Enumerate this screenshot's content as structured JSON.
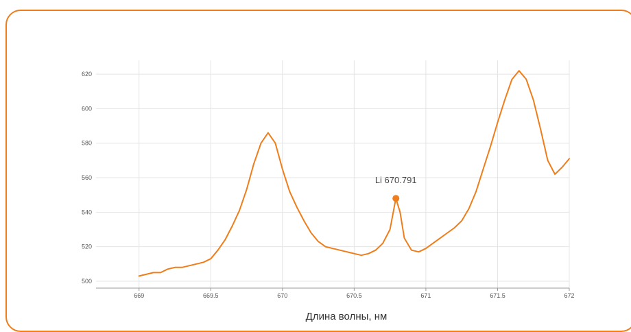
{
  "chart_data": {
    "type": "line",
    "title": "",
    "xlabel": "Длина волны, нм",
    "ylabel": "",
    "xlim": [
      668.7,
      672
    ],
    "ylim": [
      496,
      628
    ],
    "x_ticks": [
      669,
      669.5,
      670,
      670.5,
      671,
      671.5,
      672
    ],
    "x_tick_labels": [
      "669",
      "669.5",
      "670",
      "670.5",
      "671",
      "671.5",
      "672"
    ],
    "y_ticks": [
      500,
      520,
      540,
      560,
      580,
      600,
      620
    ],
    "y_tick_labels": [
      "500",
      "520",
      "540",
      "560",
      "580",
      "600",
      "620"
    ],
    "grid": true,
    "color": "#ef7d1a",
    "series": [
      {
        "points": [
          [
            669.0,
            503
          ],
          [
            669.05,
            504
          ],
          [
            669.1,
            505
          ],
          [
            669.15,
            505
          ],
          [
            669.2,
            507
          ],
          [
            669.25,
            508
          ],
          [
            669.3,
            508
          ],
          [
            669.35,
            509
          ],
          [
            669.4,
            510
          ],
          [
            669.45,
            511
          ],
          [
            669.5,
            513
          ],
          [
            669.55,
            518
          ],
          [
            669.6,
            524
          ],
          [
            669.65,
            532
          ],
          [
            669.7,
            541
          ],
          [
            669.75,
            553
          ],
          [
            669.8,
            568
          ],
          [
            669.85,
            580
          ],
          [
            669.9,
            586
          ],
          [
            669.95,
            580
          ],
          [
            670.0,
            565
          ],
          [
            670.05,
            552
          ],
          [
            670.1,
            543
          ],
          [
            670.15,
            535
          ],
          [
            670.2,
            528
          ],
          [
            670.25,
            523
          ],
          [
            670.3,
            520
          ],
          [
            670.35,
            519
          ],
          [
            670.4,
            518
          ],
          [
            670.45,
            517
          ],
          [
            670.5,
            516
          ],
          [
            670.55,
            515
          ],
          [
            670.6,
            516
          ],
          [
            670.65,
            518
          ],
          [
            670.7,
            522
          ],
          [
            670.75,
            530
          ],
          [
            670.791,
            548
          ],
          [
            670.82,
            540
          ],
          [
            670.85,
            525
          ],
          [
            670.9,
            518
          ],
          [
            670.95,
            517
          ],
          [
            671.0,
            519
          ],
          [
            671.05,
            522
          ],
          [
            671.1,
            525
          ],
          [
            671.15,
            528
          ],
          [
            671.2,
            531
          ],
          [
            671.25,
            535
          ],
          [
            671.3,
            542
          ],
          [
            671.35,
            552
          ],
          [
            671.4,
            565
          ],
          [
            671.45,
            578
          ],
          [
            671.5,
            592
          ],
          [
            671.55,
            605
          ],
          [
            671.6,
            617
          ],
          [
            671.65,
            622
          ],
          [
            671.7,
            617
          ],
          [
            671.75,
            605
          ],
          [
            671.8,
            588
          ],
          [
            671.85,
            570
          ],
          [
            671.9,
            562
          ],
          [
            671.95,
            566
          ],
          [
            672.0,
            571
          ]
        ]
      }
    ],
    "annotation": {
      "label": "Li 670.791",
      "x": 670.791,
      "y": 548
    }
  }
}
